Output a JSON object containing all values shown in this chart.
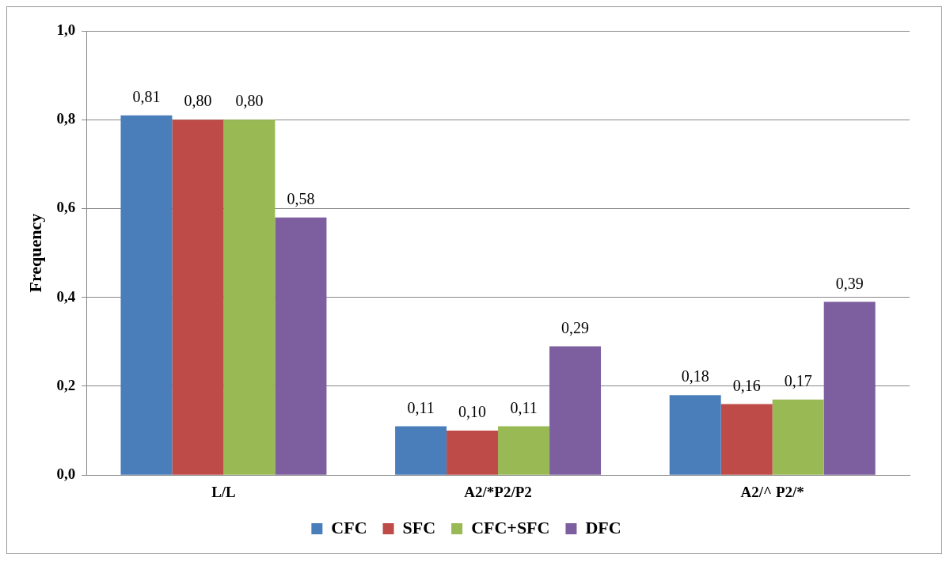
{
  "chart_data": {
    "type": "bar",
    "ylabel": "Frequency",
    "categories": [
      "L/L",
      "A2/*P2/P2",
      "A2/^ P2/*"
    ],
    "series": [
      {
        "name": "CFC",
        "color": "#4a7ebb",
        "values": [
          0.81,
          0.11,
          0.18
        ],
        "value_labels": [
          "0,81",
          "0,11",
          "0,18"
        ]
      },
      {
        "name": "SFC",
        "color": "#be4b48",
        "values": [
          0.8,
          0.1,
          0.16
        ],
        "value_labels": [
          "0,80",
          "0,10",
          "0,16"
        ]
      },
      {
        "name": "CFC+SFC",
        "color": "#98b954",
        "values": [
          0.8,
          0.11,
          0.17
        ],
        "value_labels": [
          "0,80",
          "0,11",
          "0,17"
        ]
      },
      {
        "name": "DFC",
        "color": "#7d5fa0",
        "values": [
          0.58,
          0.29,
          0.39
        ],
        "value_labels": [
          "0,58",
          "0,29",
          "0,39"
        ]
      }
    ],
    "ylim": [
      0,
      1
    ],
    "yticks": [
      {
        "value": 0,
        "label": "0,0"
      },
      {
        "value": 0.2,
        "label": "0,2"
      },
      {
        "value": 0.4,
        "label": "0,4"
      },
      {
        "value": 0.6,
        "label": "0,6"
      },
      {
        "value": 0.8,
        "label": "0,8"
      },
      {
        "value": 1,
        "label": "1,0"
      }
    ],
    "grid": "y",
    "legend": "bottom"
  }
}
